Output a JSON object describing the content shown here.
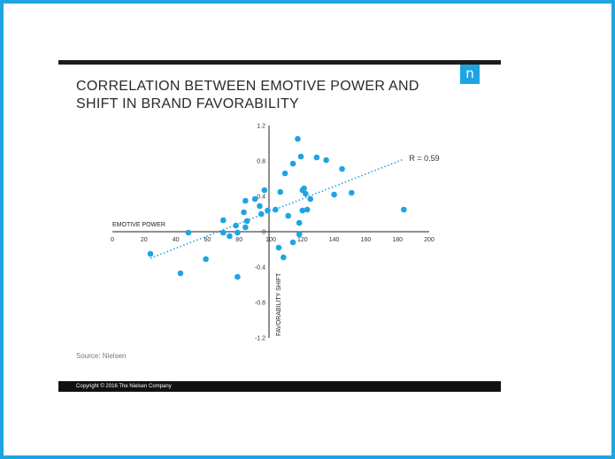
{
  "slide": {
    "title_line1": "CORRELATION BETWEEN EMOTIVE POWER AND",
    "title_line2": "SHIFT IN BRAND FAVORABILITY",
    "logo_letter": "n",
    "source": "Source: Nielsen",
    "copyright": "Copyright © 2016 The Nielsen Company",
    "accent_color": "#1ea4e3",
    "bar_color": "#1c1c1c"
  },
  "chart_data": {
    "type": "scatter",
    "title": "CORRELATION BETWEEN EMOTIVE POWER AND SHIFT IN BRAND FAVORABILITY",
    "xlabel": "EMOTIVE POWER",
    "ylabel": "FAVORABILITY SHIFT",
    "xlim": [
      0,
      200
    ],
    "ylim": [
      -1.2,
      1.2
    ],
    "xticks": [
      0,
      20,
      40,
      60,
      80,
      100,
      120,
      140,
      160,
      180,
      200
    ],
    "xtick_labels": [
      "0",
      "20",
      "40",
      "60",
      "80",
      "100",
      "120",
      "140",
      "160",
      "180",
      "200"
    ],
    "yticks": [
      1.2,
      0.8,
      0.4,
      0,
      -0.4,
      -0.8,
      -1.2
    ],
    "ytick_labels": [
      "1.2",
      "0.8",
      "0.4",
      "0",
      "-0.4",
      "-0.8",
      "-1.2"
    ],
    "grid": false,
    "point_color": "#1ea4e3",
    "trendline": {
      "x": [
        24,
        184
      ],
      "y": [
        -0.3,
        0.82
      ],
      "label": "R = 0.59",
      "style": "dotted"
    },
    "points": [
      [
        24,
        -0.25
      ],
      [
        43,
        -0.47
      ],
      [
        48,
        -0.01
      ],
      [
        59,
        -0.31
      ],
      [
        70,
        0.13
      ],
      [
        70,
        -0.01
      ],
      [
        74,
        -0.05
      ],
      [
        78,
        0.07
      ],
      [
        79,
        -0.51
      ],
      [
        79,
        -0.01
      ],
      [
        83,
        0.22
      ],
      [
        84,
        0.05
      ],
      [
        84,
        0.35
      ],
      [
        85,
        0.12
      ],
      [
        90,
        0.37
      ],
      [
        93,
        0.29
      ],
      [
        94,
        0.2
      ],
      [
        96,
        0.47
      ],
      [
        98,
        0.24
      ],
      [
        103,
        0.25
      ],
      [
        105,
        -0.18
      ],
      [
        106,
        0.45
      ],
      [
        108,
        -0.29
      ],
      [
        109,
        0.66
      ],
      [
        111,
        0.18
      ],
      [
        114,
        0.77
      ],
      [
        114,
        -0.12
      ],
      [
        117,
        1.05
      ],
      [
        118,
        -0.03
      ],
      [
        118,
        0.1
      ],
      [
        119,
        0.85
      ],
      [
        120,
        0.24
      ],
      [
        120,
        0.47
      ],
      [
        121,
        0.49
      ],
      [
        122,
        0.43
      ],
      [
        123,
        0.25
      ],
      [
        125,
        0.37
      ],
      [
        129,
        0.84
      ],
      [
        135,
        0.81
      ],
      [
        140,
        0.42
      ],
      [
        145,
        0.71
      ],
      [
        151,
        0.44
      ],
      [
        184,
        0.25
      ]
    ]
  }
}
